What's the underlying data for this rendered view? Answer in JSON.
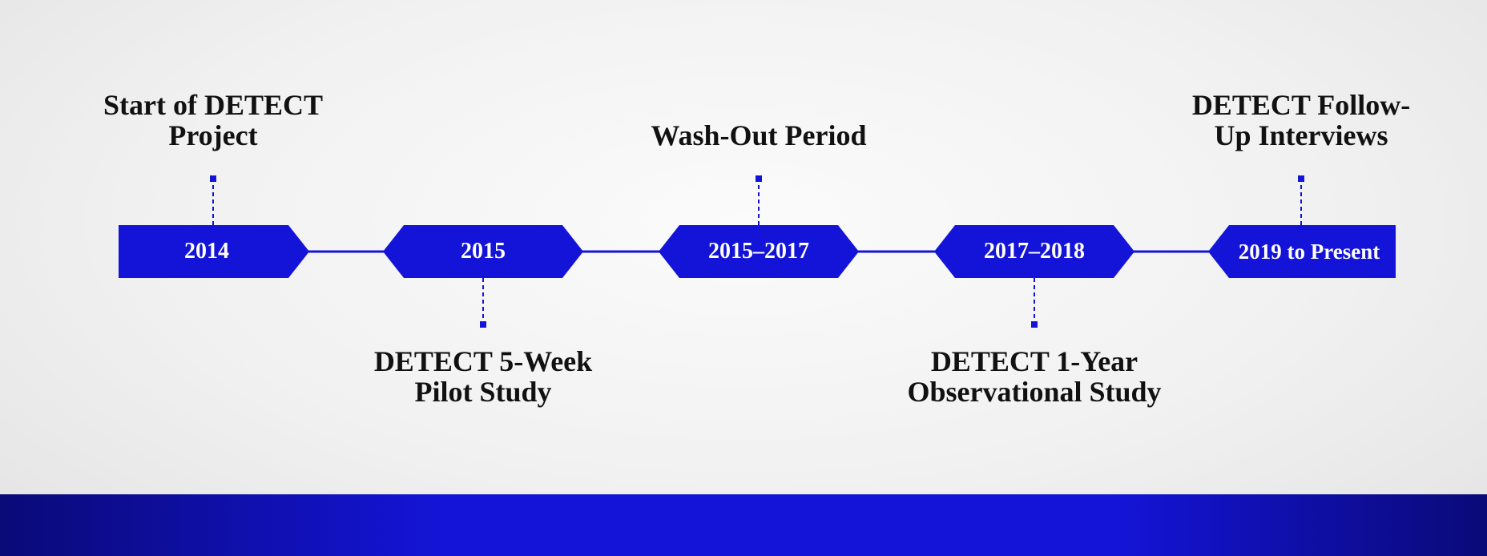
{
  "colors": {
    "accent": "#1414d8",
    "text": "#111111",
    "footer_band": "#1414d8"
  },
  "timeline": {
    "milestones": [
      {
        "year": "2014",
        "label": "Start of DETECT Project",
        "label_position": "above",
        "shape": "flag-right"
      },
      {
        "year": "2015",
        "label": "DETECT 5-Week Pilot Study",
        "label_position": "below",
        "shape": "hexagon"
      },
      {
        "year": "2015–2017",
        "label": "Wash-Out Period",
        "label_position": "above",
        "shape": "hexagon"
      },
      {
        "year": "2017–2018",
        "label": "DETECT 1-Year Observational Study",
        "label_position": "below",
        "shape": "hexagon"
      },
      {
        "year": "2019 to Present",
        "label": "DETECT Follow-Up Interviews",
        "label_position": "above",
        "shape": "flag-left"
      }
    ]
  }
}
